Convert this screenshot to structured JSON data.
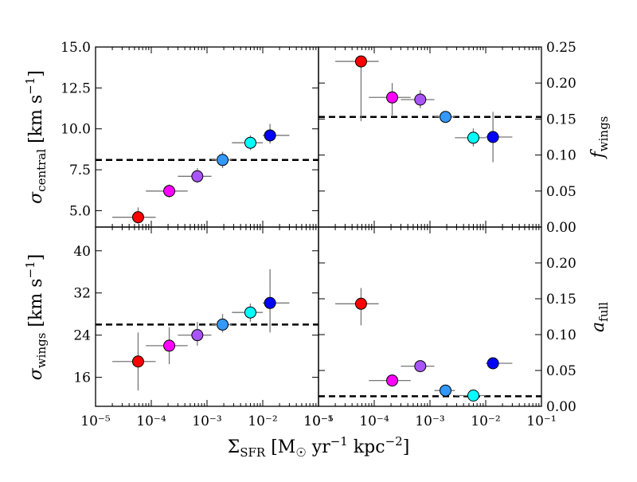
{
  "chart_data": {
    "type": "scatter",
    "layout": "2x2 grid, shared log x-axis",
    "xlabel": "Σ_SFR [M☉ yr⁻¹ kpc⁻²]",
    "x_tick_labels": [
      "10⁻⁵",
      "10⁻⁴",
      "10⁻³",
      "10⁻²",
      "10⁻¹"
    ],
    "xlim": [
      1e-05,
      0.1
    ],
    "xscale": "log",
    "grid": false,
    "marker_colors": [
      "#ff0000",
      "#ff00ff",
      "#a855f7",
      "#3399ff",
      "#00ffff",
      "#0000ff"
    ],
    "panels": [
      {
        "id": "sigma_central",
        "ylabel": "σ_central [km s⁻¹]",
        "ylim": [
          4.0,
          15.0
        ],
        "y_ticks": [
          5.0,
          7.5,
          10.0,
          12.5,
          15.0
        ],
        "y_tick_labels": [
          "5.0",
          "7.5",
          "10.0",
          "12.5",
          "15.0"
        ],
        "y_axis_side": "left",
        "reference_line": 8.1,
        "points": [
          {
            "x": 5.8e-05,
            "y": 4.6,
            "xlo": 2e-05,
            "xhi": 0.00012,
            "ylo": 4.2,
            "yhi": 5.2,
            "color": "#ff0000"
          },
          {
            "x": 0.00021,
            "y": 6.2,
            "xlo": 8e-05,
            "xhi": 0.00045,
            "ylo": 5.8,
            "yhi": 6.6,
            "color": "#ff00ff"
          },
          {
            "x": 0.00067,
            "y": 7.1,
            "xlo": 0.0003,
            "xhi": 0.0012,
            "ylo": 6.7,
            "yhi": 7.6,
            "color": "#a855f7"
          },
          {
            "x": 0.0019,
            "y": 8.1,
            "xlo": 0.0012,
            "xhi": 0.0028,
            "ylo": 7.6,
            "yhi": 8.6,
            "color": "#3399ff"
          },
          {
            "x": 0.006,
            "y": 9.15,
            "xlo": 0.0028,
            "xhi": 0.01,
            "ylo": 8.7,
            "yhi": 9.6,
            "color": "#00ffff"
          },
          {
            "x": 0.0135,
            "y": 9.6,
            "xlo": 0.01,
            "xhi": 0.03,
            "ylo": 9.1,
            "yhi": 10.3,
            "color": "#0000ff"
          }
        ]
      },
      {
        "id": "f_wings",
        "ylabel": "f_wings",
        "ylim": [
          0.0,
          0.25
        ],
        "y_ticks": [
          0.0,
          0.05,
          0.1,
          0.15,
          0.2,
          0.25
        ],
        "y_tick_labels": [
          "0.00",
          "0.05",
          "0.10",
          "0.15",
          "0.20",
          "0.25"
        ],
        "y_axis_side": "right",
        "reference_line": 0.153,
        "points": [
          {
            "x": 5.8e-05,
            "y": 0.23,
            "xlo": 2e-05,
            "xhi": 0.00012,
            "ylo": 0.147,
            "yhi": 0.23,
            "color": "#ff0000"
          },
          {
            "x": 0.00021,
            "y": 0.18,
            "xlo": 8e-05,
            "xhi": 0.00045,
            "ylo": 0.155,
            "yhi": 0.2,
            "color": "#ff00ff"
          },
          {
            "x": 0.00067,
            "y": 0.177,
            "xlo": 0.0003,
            "xhi": 0.0012,
            "ylo": 0.165,
            "yhi": 0.19,
            "color": "#a855f7"
          },
          {
            "x": 0.0019,
            "y": 0.153,
            "xlo": 0.0012,
            "xhi": 0.0028,
            "ylo": 0.145,
            "yhi": 0.16,
            "color": "#3399ff"
          },
          {
            "x": 0.006,
            "y": 0.124,
            "xlo": 0.0028,
            "xhi": 0.01,
            "ylo": 0.112,
            "yhi": 0.137,
            "color": "#00ffff"
          },
          {
            "x": 0.0135,
            "y": 0.125,
            "xlo": 0.01,
            "xhi": 0.03,
            "ylo": 0.09,
            "yhi": 0.16,
            "color": "#0000ff"
          }
        ]
      },
      {
        "id": "sigma_wings",
        "ylabel": "σ_wings [km s⁻¹]",
        "ylim": [
          10.5,
          44.5
        ],
        "y_ticks": [
          16,
          24,
          32,
          40
        ],
        "y_tick_labels": [
          "16",
          "24",
          "32",
          "40"
        ],
        "y_axis_side": "left",
        "reference_line": 26.0,
        "points": [
          {
            "x": 5.8e-05,
            "y": 19.0,
            "xlo": 2e-05,
            "xhi": 0.00012,
            "ylo": 13.5,
            "yhi": 24.5,
            "color": "#ff0000"
          },
          {
            "x": 0.00021,
            "y": 22.0,
            "xlo": 8e-05,
            "xhi": 0.00045,
            "ylo": 18.5,
            "yhi": 25.5,
            "color": "#ff00ff"
          },
          {
            "x": 0.00067,
            "y": 24.0,
            "xlo": 0.0003,
            "xhi": 0.0012,
            "ylo": 22.0,
            "yhi": 26.5,
            "color": "#a855f7"
          },
          {
            "x": 0.0019,
            "y": 26.0,
            "xlo": 0.0012,
            "xhi": 0.0028,
            "ylo": 24.5,
            "yhi": 28.0,
            "color": "#3399ff"
          },
          {
            "x": 0.006,
            "y": 28.3,
            "xlo": 0.0028,
            "xhi": 0.01,
            "ylo": 26.5,
            "yhi": 30.0,
            "color": "#00ffff"
          },
          {
            "x": 0.0135,
            "y": 30.1,
            "xlo": 0.01,
            "xhi": 0.03,
            "ylo": 24.5,
            "yhi": 36.5,
            "color": "#0000ff"
          }
        ]
      },
      {
        "id": "a_full",
        "ylabel": "a_full",
        "ylim": [
          0.0,
          0.25
        ],
        "y_ticks": [
          0.0,
          0.05,
          0.1,
          0.15,
          0.2
        ],
        "y_tick_labels": [
          "0.00",
          "0.05",
          "0.10",
          "0.15",
          "0.20"
        ],
        "y_axis_side": "right",
        "reference_line": 0.014,
        "points": [
          {
            "x": 5.8e-05,
            "y": 0.143,
            "xlo": 2e-05,
            "xhi": 0.00012,
            "ylo": 0.113,
            "yhi": 0.165,
            "color": "#ff0000"
          },
          {
            "x": 0.00021,
            "y": 0.036,
            "xlo": 8e-05,
            "xhi": 0.00045,
            "ylo": 0.036,
            "yhi": 0.036,
            "color": "#ff00ff"
          },
          {
            "x": 0.00067,
            "y": 0.056,
            "xlo": 0.0003,
            "xhi": 0.0012,
            "ylo": 0.056,
            "yhi": 0.056,
            "color": "#a855f7"
          },
          {
            "x": 0.0019,
            "y": 0.022,
            "xlo": 0.0012,
            "xhi": 0.0028,
            "ylo": 0.022,
            "yhi": 0.022,
            "color": "#3399ff"
          },
          {
            "x": 0.006,
            "y": 0.015,
            "xlo": 0.0028,
            "xhi": 0.01,
            "ylo": 0.015,
            "yhi": 0.015,
            "color": "#00ffff"
          },
          {
            "x": 0.0135,
            "y": 0.06,
            "xlo": 0.01,
            "xhi": 0.03,
            "ylo": 0.06,
            "yhi": 0.06,
            "color": "#0000ff"
          }
        ]
      }
    ]
  }
}
